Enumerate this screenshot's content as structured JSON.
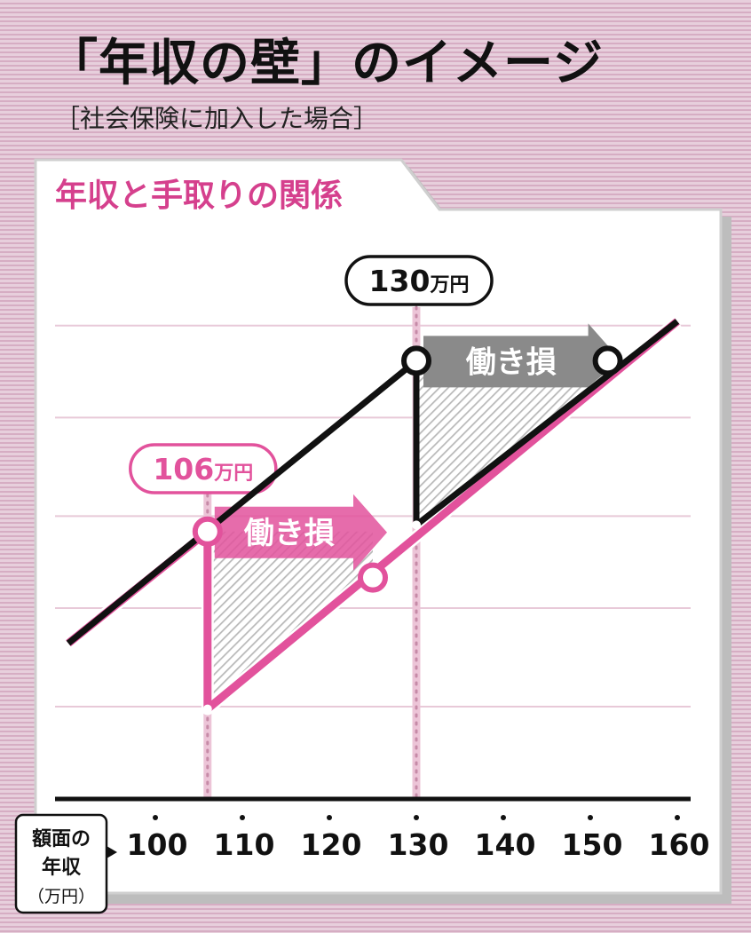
{
  "header": {
    "title": "「年収の壁」のイメージ",
    "subtitle": "［社会保険に加入した場合］"
  },
  "chart_data": {
    "type": "line",
    "title": "年収と手取りの関係",
    "xlabel": "額面の年収（万円）",
    "xlabel_lines": [
      "額面の",
      "年収",
      "（万円）"
    ],
    "ylabel": "",
    "xlim": [
      90,
      160
    ],
    "ylim": [
      0,
      100
    ],
    "x_ticks": [
      100,
      110,
      120,
      130,
      140,
      150,
      160
    ],
    "grid": true,
    "series": [
      {
        "color": "#111111",
        "points": [
          [
            90,
            11
          ],
          [
            130,
            54
          ],
          [
            130,
            29
          ],
          [
            160,
            60
          ]
        ]
      },
      {
        "color": "#e2529c",
        "points": [
          [
            90,
            11
          ],
          [
            106,
            28
          ],
          [
            106,
            1
          ],
          [
            160,
            60
          ]
        ]
      }
    ],
    "thresholds": [
      {
        "x": 106,
        "label": "106万円",
        "color": "#e2529c"
      },
      {
        "x": 130,
        "label": "130万円",
        "color": "#111111"
      }
    ],
    "markers": [
      {
        "x": 106,
        "y": 28,
        "series": "pink"
      },
      {
        "x": 125,
        "y": 21,
        "series": "pink"
      },
      {
        "x": 130,
        "y": 54,
        "series": "black"
      },
      {
        "x": 152,
        "y": 54,
        "series": "black"
      }
    ],
    "regions": [
      {
        "x_start": 106,
        "x_end": 125,
        "label": "働き損",
        "color": "#e2529c"
      },
      {
        "x_start": 130,
        "x_end": 152,
        "label": "働き損",
        "color": "#8a8a8a"
      }
    ]
  }
}
